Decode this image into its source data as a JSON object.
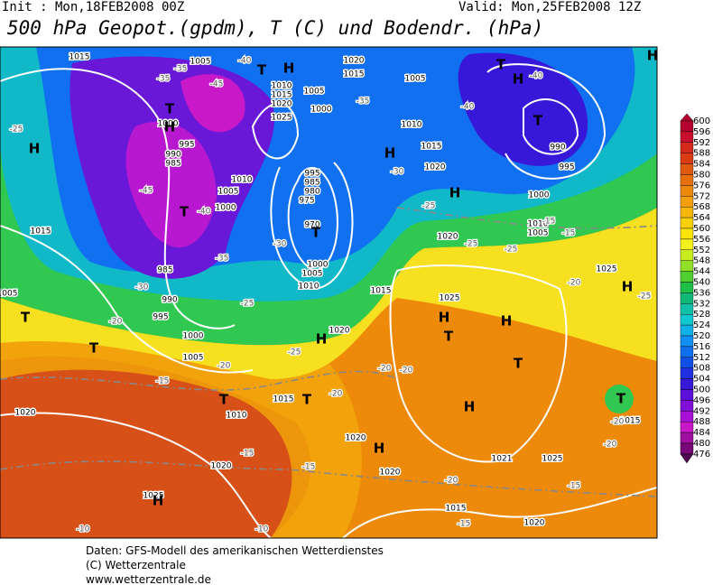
{
  "header": {
    "init": "Init : Mon,18FEB2008 00Z",
    "valid": "Valid: Mon,25FEB2008 12Z",
    "title": "500 hPa Geopot.(gpdm), T (C) und Bodendr. (hPa)"
  },
  "legend": {
    "values": [
      600,
      596,
      592,
      588,
      584,
      580,
      576,
      572,
      568,
      564,
      560,
      556,
      552,
      548,
      544,
      540,
      536,
      532,
      528,
      524,
      520,
      516,
      512,
      508,
      504,
      500,
      496,
      492,
      488,
      484,
      480,
      476
    ],
    "colors": [
      "#b3002d",
      "#c8102e",
      "#d42a1e",
      "#dc3c14",
      "#e25a10",
      "#e8700c",
      "#ee880a",
      "#f2a00a",
      "#f5b80a",
      "#f8d00a",
      "#fae40a",
      "#f4f01c",
      "#c8ec20",
      "#90e028",
      "#50d030",
      "#20c048",
      "#10b878",
      "#10c0a8",
      "#10c8d0",
      "#10b0e8",
      "#1090f0",
      "#1070f0",
      "#1050e8",
      "#2030e0",
      "#3818d8",
      "#5a10d8",
      "#8010d8",
      "#a810d8",
      "#c818c8",
      "#a010a0",
      "#780878",
      "#500850"
    ]
  },
  "map": {
    "pressure_labels": [
      1015,
      1005,
      1020,
      1015,
      1005,
      1000,
      995,
      990,
      985,
      1010,
      1015,
      1020,
      1025,
      1005,
      1000,
      1010,
      1015,
      1020,
      990,
      995,
      1000,
      1010,
      1005,
      1010,
      1005,
      1000,
      995,
      985,
      980,
      975,
      970,
      1000,
      1005,
      1010,
      985,
      990,
      995,
      1015,
      1000,
      1005,
      1020,
      1015,
      1025,
      1020,
      1015,
      1010,
      1020,
      1020,
      1020,
      1020,
      1025,
      1025,
      1021,
      1015,
      1020,
      1015,
      1025,
      1005
    ],
    "temperature_labels": [
      -35,
      -40,
      -45,
      -35,
      -35,
      -40,
      -40,
      -25,
      -30,
      -45,
      -40,
      -35,
      -30,
      -30,
      -25,
      -20,
      -25,
      -25,
      -25,
      -15,
      -15,
      -20,
      -25,
      -20,
      -25,
      -20,
      -20,
      -15,
      -20,
      -15,
      -15,
      -20,
      -15,
      -10,
      -10,
      -15,
      -20,
      -20
    ],
    "centers": [
      "H",
      "T",
      "H",
      "T",
      "H",
      "T",
      "T",
      "H",
      "H",
      "T",
      "H",
      "T",
      "T",
      "T",
      "H",
      "H",
      "H",
      "T",
      "T",
      "H",
      "T",
      "T",
      "H",
      "H",
      "H",
      "T",
      "H"
    ]
  },
  "footer": {
    "source": "Daten: GFS-Modell des amerikanischen Wetterdienstes",
    "copyright": "(C) Wetterzentrale",
    "url": "www.wetterzentrale.de"
  }
}
